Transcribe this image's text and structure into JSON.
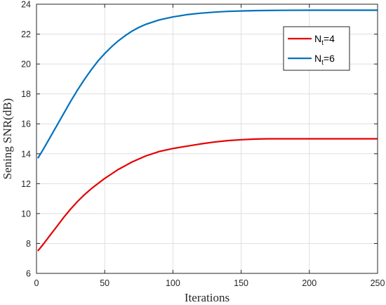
{
  "chart_data": {
    "type": "line",
    "title": "",
    "xlabel": "Iterations",
    "ylabel": "Sening SNR(dB)",
    "xlim": [
      0,
      250
    ],
    "ylim": [
      6,
      24
    ],
    "xticks": [
      0,
      50,
      100,
      150,
      200,
      250
    ],
    "yticks": [
      6,
      8,
      10,
      12,
      14,
      16,
      18,
      20,
      22,
      24
    ],
    "grid": true,
    "legend_placement": "top-right",
    "series": [
      {
        "name_main": "N",
        "name_sub": "t",
        "name_suffix": "=4",
        "color": "#e60000",
        "x": [
          1,
          5,
          10,
          15,
          20,
          25,
          30,
          35,
          40,
          45,
          50,
          55,
          60,
          65,
          70,
          75,
          80,
          90,
          100,
          110,
          120,
          130,
          140,
          150,
          160,
          170,
          180,
          200,
          220,
          250
        ],
        "y": [
          7.5,
          7.95,
          8.55,
          9.15,
          9.75,
          10.3,
          10.8,
          11.25,
          11.65,
          12.0,
          12.35,
          12.65,
          12.95,
          13.2,
          13.45,
          13.65,
          13.85,
          14.15,
          14.35,
          14.5,
          14.65,
          14.78,
          14.88,
          14.94,
          14.98,
          15.0,
          15.0,
          15.0,
          15.0,
          15.0
        ]
      },
      {
        "name_main": "N",
        "name_sub": "t",
        "name_suffix": "=6",
        "color": "#0072bd",
        "x": [
          1,
          5,
          10,
          15,
          20,
          25,
          30,
          35,
          40,
          45,
          50,
          55,
          60,
          65,
          70,
          75,
          80,
          90,
          100,
          110,
          120,
          130,
          140,
          150,
          160,
          170,
          180,
          200,
          220,
          250
        ],
        "y": [
          13.7,
          14.3,
          15.1,
          15.9,
          16.7,
          17.5,
          18.25,
          18.95,
          19.6,
          20.2,
          20.7,
          21.15,
          21.55,
          21.9,
          22.2,
          22.45,
          22.65,
          22.95,
          23.15,
          23.3,
          23.4,
          23.47,
          23.52,
          23.55,
          23.57,
          23.58,
          23.59,
          23.6,
          23.6,
          23.6
        ]
      }
    ]
  }
}
